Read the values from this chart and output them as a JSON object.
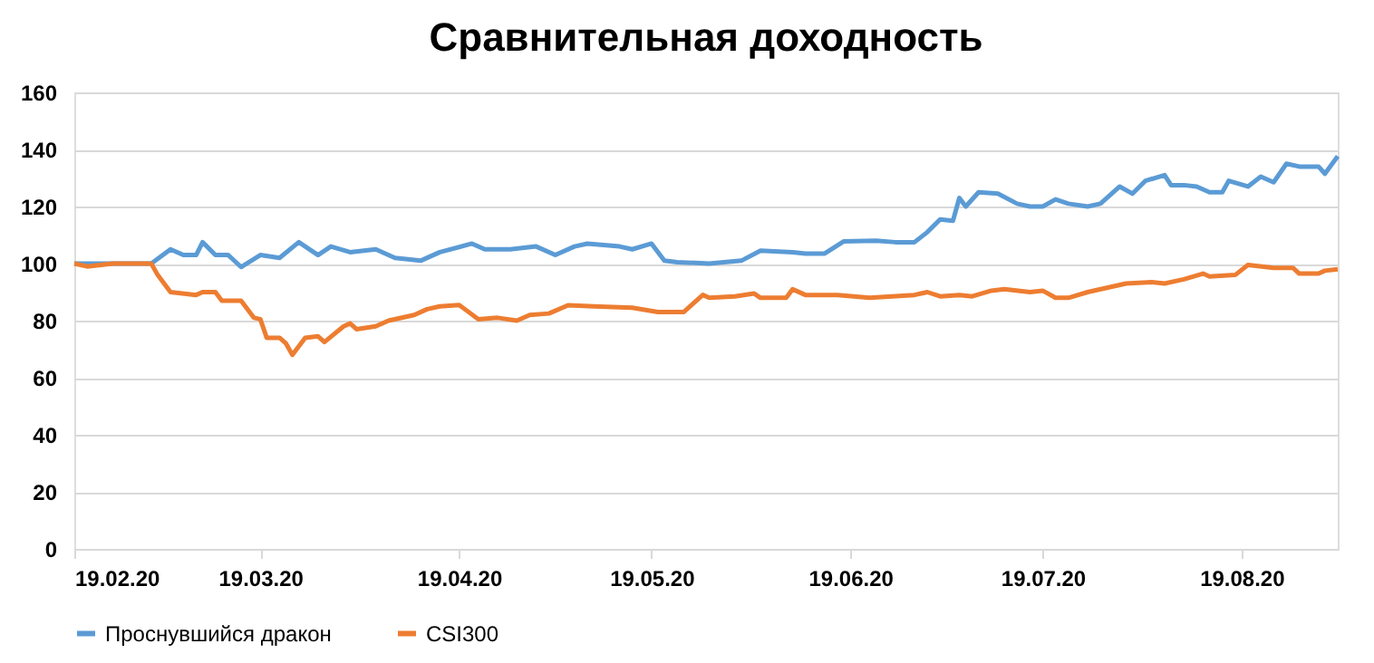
{
  "chart_data": {
    "type": "line",
    "title": "Сравнительная доходность",
    "xlim": [
      "2020-02-19",
      "2020-09-03"
    ],
    "xticks": [
      {
        "value": "2020-02-19",
        "label": "19.02.20"
      },
      {
        "value": "2020-03-19",
        "label": "19.03.20"
      },
      {
        "value": "2020-04-19",
        "label": "19.04.20"
      },
      {
        "value": "2020-05-19",
        "label": "19.05.20"
      },
      {
        "value": "2020-06-19",
        "label": "19.06.20"
      },
      {
        "value": "2020-07-19",
        "label": "19.07.20"
      },
      {
        "value": "2020-08-19",
        "label": "19.08.20"
      }
    ],
    "ylim": [
      0,
      160
    ],
    "yticks": [
      0,
      20,
      40,
      60,
      80,
      100,
      120,
      140,
      160
    ],
    "grid": "y",
    "legend": "bottom",
    "marker": "none",
    "line_style": "solid",
    "series": [
      {
        "name": "Проснувшийся дракон",
        "color": "#5b9bd5",
        "x": [
          "2020-02-19",
          "2020-02-25",
          "2020-03-02",
          "2020-03-05",
          "2020-03-07",
          "2020-03-09",
          "2020-03-10",
          "2020-03-12",
          "2020-03-14",
          "2020-03-16",
          "2020-03-19",
          "2020-03-22",
          "2020-03-25",
          "2020-03-28",
          "2020-03-30",
          "2020-04-02",
          "2020-04-06",
          "2020-04-09",
          "2020-04-13",
          "2020-04-16",
          "2020-04-21",
          "2020-04-23",
          "2020-04-27",
          "2020-05-01",
          "2020-05-04",
          "2020-05-07",
          "2020-05-09",
          "2020-05-14",
          "2020-05-16",
          "2020-05-19",
          "2020-05-21",
          "2020-05-23",
          "2020-05-28",
          "2020-06-02",
          "2020-06-05",
          "2020-06-10",
          "2020-06-12",
          "2020-06-15",
          "2020-06-18",
          "2020-06-23",
          "2020-06-26",
          "2020-06-29",
          "2020-07-01",
          "2020-07-03",
          "2020-07-05",
          "2020-07-06",
          "2020-07-07",
          "2020-07-09",
          "2020-07-12",
          "2020-07-15",
          "2020-07-17",
          "2020-07-19",
          "2020-07-21",
          "2020-07-23",
          "2020-07-26",
          "2020-07-28",
          "2020-07-31",
          "2020-08-02",
          "2020-08-04",
          "2020-08-07",
          "2020-08-08",
          "2020-08-10",
          "2020-08-12",
          "2020-08-14",
          "2020-08-16",
          "2020-08-17",
          "2020-08-20",
          "2020-08-22",
          "2020-08-24",
          "2020-08-26",
          "2020-08-28",
          "2020-08-31",
          "2020-09-01",
          "2020-09-03"
        ],
        "values": [
          100,
          100,
          100,
          105,
          103,
          103,
          107.5,
          103,
          103,
          98.8,
          103,
          102,
          107.5,
          103,
          106,
          104,
          105,
          102,
          101,
          104,
          107,
          105,
          105,
          106,
          103,
          106,
          107,
          106,
          105,
          107,
          101,
          100.5,
          100,
          101,
          104.5,
          104,
          103.5,
          103.5,
          107.8,
          108,
          107.5,
          107.5,
          111,
          115.5,
          115,
          123,
          120,
          125,
          124.5,
          121,
          120,
          120,
          122.5,
          121,
          120,
          121,
          127,
          124.5,
          129,
          131,
          127.5,
          127.5,
          127,
          125,
          125,
          129,
          127,
          130.5,
          128.5,
          135,
          134,
          134,
          131.5,
          137.6
        ]
      },
      {
        "name": "CSI300",
        "color": "#ed7d31",
        "x": [
          "2020-02-19",
          "2020-02-21",
          "2020-02-25",
          "2020-03-02",
          "2020-03-03",
          "2020-03-05",
          "2020-03-09",
          "2020-03-10",
          "2020-03-12",
          "2020-03-13",
          "2020-03-16",
          "2020-03-18",
          "2020-03-19",
          "2020-03-20",
          "2020-03-22",
          "2020-03-23",
          "2020-03-24",
          "2020-03-26",
          "2020-03-28",
          "2020-03-29",
          "2020-04-01",
          "2020-04-02",
          "2020-04-03",
          "2020-04-06",
          "2020-04-08",
          "2020-04-12",
          "2020-04-14",
          "2020-04-16",
          "2020-04-19",
          "2020-04-22",
          "2020-04-25",
          "2020-04-28",
          "2020-04-30",
          "2020-05-03",
          "2020-05-06",
          "2020-05-10",
          "2020-05-16",
          "2020-05-20",
          "2020-05-24",
          "2020-05-27",
          "2020-05-28",
          "2020-06-01",
          "2020-06-04",
          "2020-06-05",
          "2020-06-09",
          "2020-06-10",
          "2020-06-12",
          "2020-06-17",
          "2020-06-22",
          "2020-06-29",
          "2020-07-01",
          "2020-07-03",
          "2020-07-06",
          "2020-07-08",
          "2020-07-11",
          "2020-07-13",
          "2020-07-17",
          "2020-07-19",
          "2020-07-21",
          "2020-07-23",
          "2020-07-26",
          "2020-07-29",
          "2020-08-01",
          "2020-08-05",
          "2020-08-07",
          "2020-08-10",
          "2020-08-13",
          "2020-08-14",
          "2020-08-18",
          "2020-08-20",
          "2020-08-24",
          "2020-08-27",
          "2020-08-28",
          "2020-08-31",
          "2020-09-01",
          "2020-09-03"
        ],
        "values": [
          100,
          99,
          100,
          100,
          96,
          90,
          89,
          90,
          90,
          87,
          87,
          81,
          80.5,
          74,
          74,
          72,
          68,
          74,
          74.5,
          72.5,
          78,
          79,
          77,
          78,
          80,
          82,
          84,
          85,
          85.5,
          80.5,
          81,
          80,
          82,
          82.5,
          85.4,
          85,
          84.5,
          83,
          83,
          89,
          88,
          88.5,
          89.5,
          88,
          88,
          91,
          89,
          89,
          88,
          89,
          90,
          88.5,
          89,
          88.5,
          90.5,
          91,
          90,
          90.5,
          88,
          88,
          90,
          91.5,
          93,
          93.5,
          93,
          94.5,
          96.5,
          95.5,
          96,
          99.5,
          98.5,
          98.5,
          96.5,
          96.5,
          97.5,
          98
        ]
      }
    ]
  }
}
